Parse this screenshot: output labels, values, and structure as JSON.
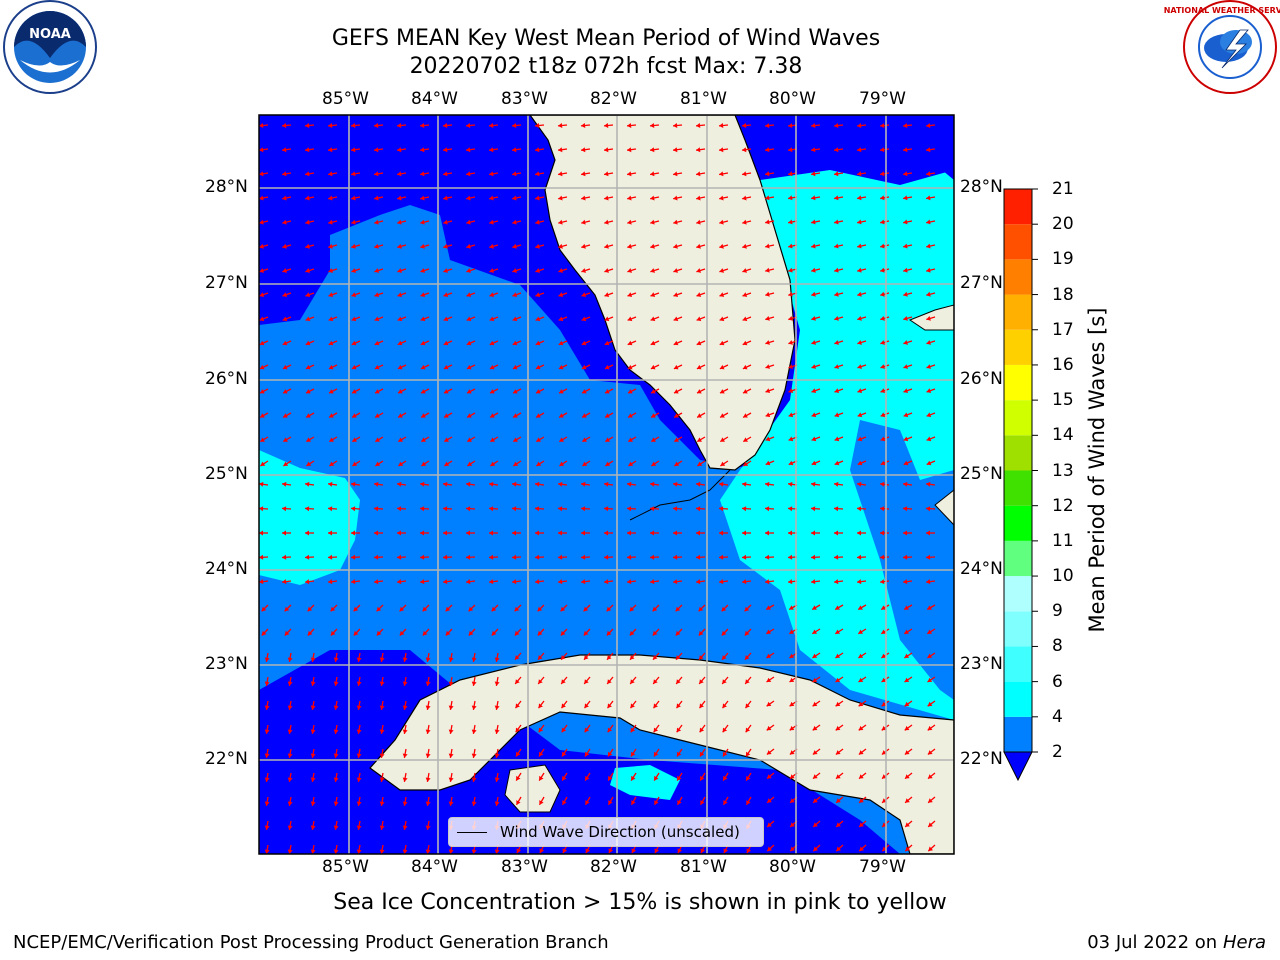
{
  "title_line1": "GEFS MEAN Key West Mean Period of Wind Waves",
  "title_line2": "20220702 t18z 072h fcst   Max: 7.38",
  "bottom_note": "Sea Ice Concentration > 15% is shown in pink to yellow",
  "credit": "NCEP/EMC/Verification Post Processing Product Generation Branch",
  "date_prefix": "03 Jul 2022 on ",
  "date_host": "Hera",
  "legend_label": "Wind Wave Direction (unscaled)",
  "colorbar": {
    "title": "Mean Period of Wind Waves [s]",
    "ticks": [
      "2",
      "4",
      "6",
      "8",
      "9",
      "10",
      "11",
      "12",
      "13",
      "14",
      "15",
      "16",
      "17",
      "18",
      "19",
      "20",
      "21"
    ],
    "colors": [
      "#0000ff",
      "#0080ff",
      "#00ffff",
      "#40ffff",
      "#80ffff",
      "#b0ffff",
      "#60ff80",
      "#00ff00",
      "#40e000",
      "#a0e000",
      "#d0ff00",
      "#ffff00",
      "#ffd000",
      "#ffb000",
      "#ff8000",
      "#ff5000",
      "#ff2000",
      "#ff0000"
    ]
  },
  "lon_labels": [
    "85°W",
    "84°W",
    "83°W",
    "82°W",
    "81°W",
    "80°W",
    "79°W"
  ],
  "lat_labels": [
    "28°N",
    "27°N",
    "26°N",
    "25°N",
    "24°N",
    "23°N",
    "22°N"
  ],
  "logos": {
    "left": {
      "name": "noaa-logo",
      "text": "NOAA"
    },
    "right": {
      "name": "nws-logo",
      "text": "NATIONAL WEATHER SERVICE"
    }
  },
  "colors": {
    "ocean_dark": "#0000ff",
    "ocean_mid": "#0080ff",
    "ocean_cyan": "#00ffff",
    "land": "#efefdf",
    "arrow": "#ff0000",
    "grid": "#b4b4b4"
  }
}
